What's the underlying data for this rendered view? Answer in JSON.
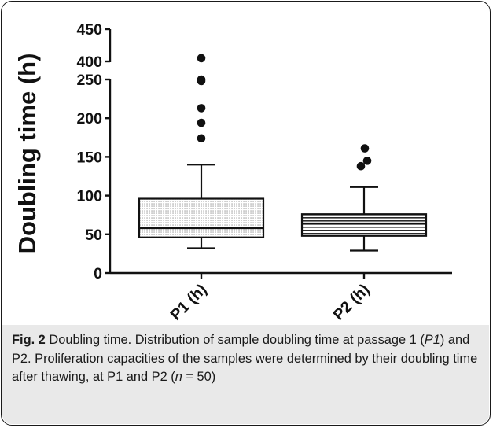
{
  "chart_data": {
    "type": "boxplot",
    "ylabel": "Doubling  time (h)",
    "y_axis": {
      "broken": true,
      "lower_segment": [
        0,
        250
      ],
      "upper_segment": [
        380,
        450
      ],
      "ticks_lower": [
        "0",
        "50",
        "100",
        "150",
        "200",
        "250"
      ],
      "ticks_upper": [
        "400",
        "450"
      ],
      "tick_values_lower": [
        0,
        50,
        100,
        150,
        200,
        250
      ],
      "tick_values_upper": [
        400,
        450
      ]
    },
    "categories": [
      "P1 (h)",
      "P2 (h)"
    ],
    "boxes": [
      {
        "category": "P1 (h)",
        "whisker_low": 32,
        "q1": 46,
        "median": 58,
        "q3": 96,
        "whisker_high": 140,
        "outliers": [
          174,
          194,
          213,
          248,
          268,
          405
        ],
        "fill": "dotted"
      },
      {
        "category": "P2 (h)",
        "whisker_low": 29,
        "q1": 48,
        "median": 64,
        "q3": 76,
        "whisker_high": 111,
        "outliers": [
          138,
          145,
          161
        ],
        "fill": "striped"
      }
    ]
  },
  "caption": {
    "label": "Fig. 2",
    "title": "Doubling time.",
    "t1": "Distribution of sample doubling time at passage 1 (",
    "t2": "P1",
    "t3": ") and P2. Proliferation capacities of the samples were determined by their doubling time after thawing, at P1 and P2 (",
    "t4": "n",
    "t5": " = 50)"
  }
}
